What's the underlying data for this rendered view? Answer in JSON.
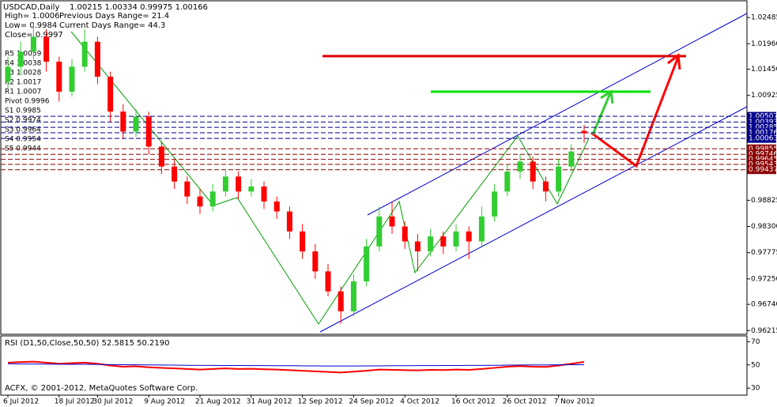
{
  "chart_data": {
    "type": "candlestick",
    "symbol": "USDCAD,Daily",
    "header_ohlc": "1.00215 1.00334 0.99975 1.00166",
    "info": [
      "High= 1.0006",
      "Previous Days Range= 21.4",
      "Low= 0.9984",
      "Current Days Range= 44.3",
      "Close= 0.9997"
    ],
    "pivot_labels": [
      "R5 1.0059",
      "R4 1.0038",
      "R3 1.0028",
      "R2 1.0017",
      "R1 1.0007",
      "Pivot 0.9996",
      "S1 0.9985",
      "S2 0.9974",
      "S3 0.9964",
      "S4 0.9954",
      "S5 0.9944"
    ],
    "resistance_levels": [
      1.00507,
      1.00393,
      1.00285,
      1.00176,
      1.00063
    ],
    "resistance_color": "#00008b",
    "support_levels": [
      0.99855,
      0.99746,
      0.99645,
      0.99543,
      0.99437
    ],
    "support_color": "#8b0000",
    "bull_color": "#32cd32",
    "bear_color": "#ff0000",
    "ylim": [
      0.9614,
      1.0282
    ],
    "yticks": [
      1.02485,
      {
        "value": 1.0196,
        "label": "1.01960"
      },
      {
        "value": 1.0145,
        "label": "1.01450"
      },
      1.00925,
      0.98825,
      {
        "value": 0.983,
        "label": "0.98300"
      },
      0.97775,
      {
        "value": 0.9725,
        "label": "0.97250"
      },
      {
        "value": 0.9674,
        "label": "0.96740"
      },
      0.96215
    ],
    "categories": [
      "6 Jul 2012",
      null,
      null,
      null,
      "18 Jul 2012",
      null,
      null,
      "30 Jul 2012",
      null,
      null,
      null,
      "9 Aug 2012",
      null,
      null,
      null,
      "21 Aug 2012",
      null,
      null,
      null,
      "31 Aug 2012",
      null,
      null,
      null,
      "12 Sep 2012",
      null,
      null,
      null,
      "24 Sep 2012",
      null,
      null,
      null,
      "4 Oct 2012",
      null,
      null,
      null,
      "16 Oct 2012",
      null,
      null,
      null,
      "26 Oct 2012",
      null,
      null,
      null,
      "7 Nov 2012",
      null,
      null
    ],
    "ohlc": [
      [
        1.012,
        1.017,
        1.0105,
        1.015
      ],
      [
        1.015,
        1.02,
        1.0135,
        1.018
      ],
      [
        1.018,
        1.0235,
        1.0165,
        1.021
      ],
      [
        1.021,
        1.0225,
        1.014,
        1.016
      ],
      [
        1.016,
        1.017,
        1.008,
        1.01
      ],
      [
        1.01,
        1.0165,
        1.009,
        1.015
      ],
      [
        1.015,
        1.0225,
        1.014,
        1.02
      ],
      [
        1.02,
        1.021,
        1.0115,
        1.013
      ],
      [
        1.013,
        1.014,
        1.004,
        1.006
      ],
      [
        1.006,
        1.0075,
        1.0005,
        1.002
      ],
      [
        1.002,
        1.0065,
        1.001,
        1.005
      ],
      [
        1.005,
        1.006,
        0.9975,
        0.999
      ],
      [
        0.999,
        1.0,
        0.9935,
        0.995
      ],
      [
        0.995,
        0.9965,
        0.9905,
        0.992
      ],
      [
        0.992,
        0.993,
        0.9875,
        0.989
      ],
      [
        0.989,
        0.9905,
        0.9855,
        0.987
      ],
      [
        0.987,
        0.9915,
        0.986,
        0.99
      ],
      [
        0.99,
        0.9945,
        0.989,
        0.993
      ],
      [
        0.993,
        0.994,
        0.9885,
        0.99
      ],
      [
        0.99,
        0.9925,
        0.989,
        0.991
      ],
      [
        0.991,
        0.992,
        0.9865,
        0.988
      ],
      [
        0.988,
        0.989,
        0.9845,
        0.986
      ],
      [
        0.986,
        0.987,
        0.9805,
        0.982
      ],
      [
        0.982,
        0.9835,
        0.9765,
        0.978
      ],
      [
        0.978,
        0.9795,
        0.9725,
        0.974
      ],
      [
        0.974,
        0.9755,
        0.969,
        0.97
      ],
      [
        0.97,
        0.971,
        0.9635,
        0.966
      ],
      [
        0.966,
        0.9735,
        0.965,
        0.972
      ],
      [
        0.972,
        0.9805,
        0.971,
        0.979
      ],
      [
        0.979,
        0.987,
        0.978,
        0.985
      ],
      [
        0.985,
        0.988,
        0.9815,
        0.983
      ],
      [
        0.983,
        0.984,
        0.9785,
        0.98
      ],
      [
        0.98,
        0.9815,
        0.974,
        0.978
      ],
      [
        0.978,
        0.9825,
        0.977,
        0.981
      ],
      [
        0.981,
        0.982,
        0.9775,
        0.979
      ],
      [
        0.979,
        0.9835,
        0.978,
        0.982
      ],
      [
        0.982,
        0.983,
        0.9765,
        0.98
      ],
      [
        0.98,
        0.987,
        0.979,
        0.985
      ],
      [
        0.985,
        0.9915,
        0.984,
        0.99
      ],
      [
        0.99,
        0.9955,
        0.989,
        0.994
      ],
      [
        0.994,
        0.9975,
        0.9925,
        0.996
      ],
      [
        0.996,
        0.997,
        0.9905,
        0.992
      ],
      [
        0.992,
        0.993,
        0.988,
        0.99
      ],
      [
        0.99,
        0.9965,
        0.989,
        0.995
      ],
      [
        0.995,
        0.9995,
        0.994,
        0.998
      ],
      [
        1.00215,
        1.00334,
        0.99975,
        1.00166
      ]
    ],
    "rsi_title": "RSI (D1,50,Close,50,50) 52.5815 50.2190",
    "rsi_ylim": [
      24,
      75
    ],
    "rsi_yticks": [
      70,
      50,
      30
    ],
    "rsi_series": [
      {
        "color": "#ff0000",
        "values": [
          52,
          52.5,
          52.8,
          52,
          51,
          51.5,
          52,
          51,
          49.5,
          48.5,
          48.8,
          48,
          47.5,
          47,
          46.5,
          46,
          46.5,
          47,
          46.5,
          46.7,
          46.3,
          46,
          45.5,
          45,
          44.5,
          44,
          43.5,
          44.2,
          45,
          46,
          45.8,
          45.5,
          45.3,
          45.8,
          45.6,
          46,
          45.8,
          46.5,
          47.5,
          48.5,
          49,
          48.5,
          48.3,
          49.5,
          51,
          52.58
        ]
      },
      {
        "color": "#0000cd",
        "values": [
          51,
          50.9,
          50.8,
          50.7,
          50.6,
          50.5,
          50.5,
          50.4,
          50.3,
          50.2,
          50.1,
          50,
          49.9,
          49.8,
          49.7,
          49.6,
          49.6,
          49.5,
          49.5,
          49.4,
          49.4,
          49.3,
          49.3,
          49.2,
          49.2,
          49.1,
          49.1,
          49.1,
          49.2,
          49.2,
          49.3,
          49.3,
          49.4,
          49.4,
          49.5,
          49.5,
          49.6,
          49.6,
          49.7,
          49.8,
          49.9,
          50,
          50,
          50.1,
          50.15,
          50.219
        ]
      }
    ],
    "footer": "ACFX, © 2001-2012, MetaQuotes Software Corp."
  }
}
